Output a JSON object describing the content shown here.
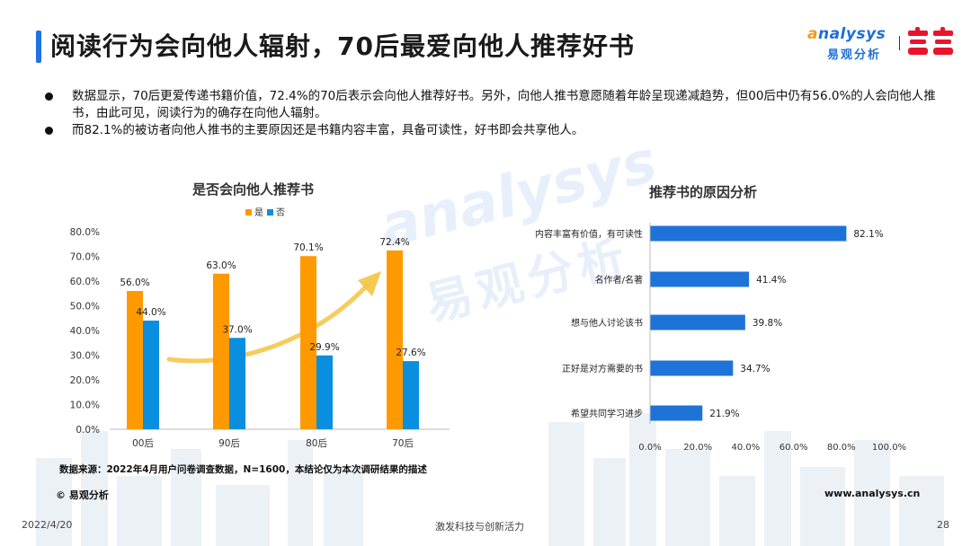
{
  "header": {
    "title": "阅读行为会向他人辐射，70后最爱向他人推荐好书",
    "logo_en_prefix": "a",
    "logo_en_rest": "nalysys",
    "logo_cn": "易观分析",
    "partner_logo": "当当"
  },
  "bullets": [
    "数据显示，70后更爱传递书籍价值，72.4%的70后表示会向他人推荐好书。另外，向他人推书意愿随着年龄呈现递减趋势，但00后中仍有56.0%的人会向他人推书，由此可见，阅读行为的确存在向他人辐射。",
    "而82.1%的被访者向他人推书的主要原因还是书籍内容丰富，具备可读性，好书即会共享他人。"
  ],
  "watermark": {
    "en": "analysys",
    "cn": "易观分析"
  },
  "chart_data": [
    {
      "type": "bar",
      "title": "是否会向他人推荐书",
      "categories": [
        "00后",
        "90后",
        "80后",
        "70后"
      ],
      "series": [
        {
          "name": "是",
          "values": [
            56.0,
            63.0,
            70.1,
            72.4
          ],
          "labels": [
            "56.0%",
            "63.0%",
            "70.1%",
            "72.4%"
          ]
        },
        {
          "name": "否",
          "values": [
            44.0,
            37.0,
            29.9,
            27.6
          ],
          "labels": [
            "44.0%",
            "37.0%",
            "29.9%",
            "27.6%"
          ]
        }
      ],
      "yticks": [
        "0.0%",
        "10.0%",
        "20.0%",
        "30.0%",
        "40.0%",
        "50.0%",
        "60.0%",
        "70.0%",
        "80.0%"
      ],
      "ylim": [
        0,
        80
      ],
      "legend_position": "top",
      "grid": false,
      "colors": {
        "是": "#ff9900",
        "否": "#0a8fe0"
      }
    },
    {
      "type": "bar",
      "orientation": "horizontal",
      "title": "推荐书的原因分析",
      "categories": [
        "内容丰富有价值，有可读性",
        "名作者/名著",
        "想与他人讨论该书",
        "正好是对方需要的书",
        "希望共同学习进步"
      ],
      "values": [
        82.1,
        41.4,
        39.8,
        34.7,
        21.9
      ],
      "labels": [
        "82.1%",
        "41.4%",
        "39.8%",
        "34.7%",
        "21.9%"
      ],
      "xticks": [
        "0.0%",
        "20.0%",
        "40.0%",
        "60.0%",
        "80.0%",
        "100.0%"
      ],
      "xlim": [
        0,
        100
      ],
      "grid": false,
      "color": "#1e73d9"
    }
  ],
  "footer": {
    "source": "数据来源：2022年4月用户问卷调查数据，N=1600，本结论仅为本次调研结果的描述",
    "copyright": "© 易观分析",
    "website": "www.analysys.cn",
    "date": "2022/4/20",
    "slogan": "激发科技与创新活力",
    "page": "28"
  }
}
